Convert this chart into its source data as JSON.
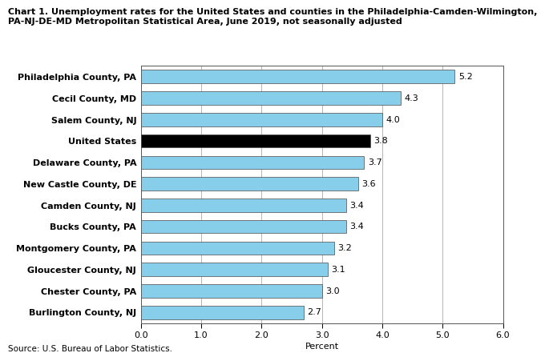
{
  "title_line1": "Chart 1. Unemployment rates for the United States and counties in the Philadelphia-Camden-Wilmington,",
  "title_line2": "PA-NJ-DE-MD Metropolitan Statistical Area, June 2019, not seasonally adjusted",
  "categories": [
    "Burlington County, NJ",
    "Chester County, PA",
    "Gloucester County, NJ",
    "Montgomery County, PA",
    "Bucks County, PA",
    "Camden County, NJ",
    "New Castle County, DE",
    "Delaware County, PA",
    "United States",
    "Salem County, NJ",
    "Cecil County, MD",
    "Philadelphia County, PA"
  ],
  "values": [
    2.7,
    3.0,
    3.1,
    3.2,
    3.4,
    3.4,
    3.6,
    3.7,
    3.8,
    4.0,
    4.3,
    5.2
  ],
  "bar_colors": [
    "#87CEEB",
    "#87CEEB",
    "#87CEEB",
    "#87CEEB",
    "#87CEEB",
    "#87CEEB",
    "#87CEEB",
    "#87CEEB",
    "#000000",
    "#87CEEB",
    "#87CEEB",
    "#87CEEB"
  ],
  "xlabel": "Percent",
  "xlim": [
    0,
    6.0
  ],
  "xticks": [
    0.0,
    1.0,
    2.0,
    3.0,
    4.0,
    5.0,
    6.0
  ],
  "xtick_labels": [
    "0.0",
    "1.0",
    "2.0",
    "3.0",
    "4.0",
    "5.0",
    "6.0"
  ],
  "source_text": "Source: U.S. Bureau of Labor Statistics.",
  "title_fontsize": 8.0,
  "label_fontsize": 8.0,
  "tick_fontsize": 8.0,
  "value_fontsize": 8.0,
  "source_fontsize": 7.5,
  "bar_height": 0.62,
  "background_color": "#ffffff",
  "grid_color": "#aaaaaa",
  "edge_color": "#555555",
  "bar_edge_color": "#4a4a4a",
  "spine_color": "#555555"
}
